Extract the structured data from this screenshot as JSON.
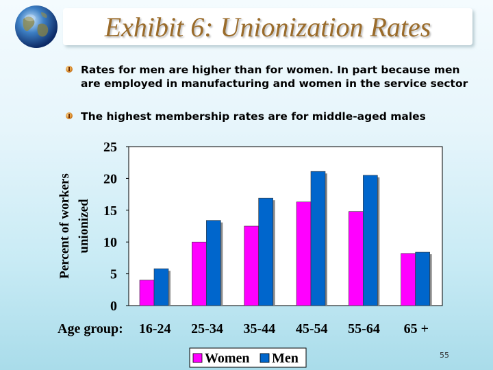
{
  "slide": {
    "title": "Exhibit 6: Unionization Rates",
    "bullets": [
      "Rates for men are higher than for women. In part because men are employed in manufacturing and women in the service sector",
      "The highest membership rates are for middle-aged males"
    ],
    "page_number": "55",
    "icons": {
      "logo": "globe-icon",
      "bullet": "bullet-icon"
    }
  },
  "chart_data": {
    "type": "bar",
    "title": "",
    "xlabel": "Age group:",
    "ylabel": "Percent of workers unionized",
    "categories": [
      "16-24",
      "25-34",
      "35-44",
      "45-54",
      "55-64",
      "65 +"
    ],
    "series": [
      {
        "name": "Women",
        "color": "#ff00ff",
        "values": [
          4,
          10,
          12.5,
          16.3,
          14.8,
          8.2
        ]
      },
      {
        "name": "Men",
        "color": "#0066cc",
        "values": [
          5.8,
          13.4,
          16.9,
          21.1,
          20.5,
          8.4
        ]
      }
    ],
    "ylim": [
      0,
      25
    ],
    "yticks": [
      0,
      5,
      10,
      15,
      20,
      25
    ],
    "grid": false,
    "legend": "bottom-center",
    "plot_background": "#ffffff"
  }
}
